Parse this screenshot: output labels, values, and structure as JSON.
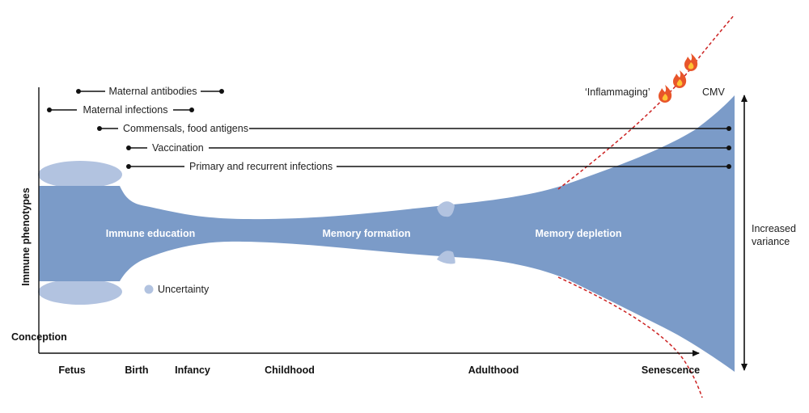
{
  "axis": {
    "y_title": "Immune phenotypes",
    "origin_label": "Conception"
  },
  "stages": [
    "Fetus",
    "Birth",
    "Infancy",
    "Childhood",
    "Adulthood",
    "Senescence"
  ],
  "phases": [
    "Immune education",
    "Memory formation",
    "Memory depletion"
  ],
  "exposures": [
    "Maternal antibodies",
    "Maternal infections",
    "Commensals, food antigens",
    "Vaccination",
    "Primary and recurrent infections"
  ],
  "legend": {
    "uncertainty": "Uncertainty"
  },
  "annotations": {
    "inflammaging": "‘Inflammaging’",
    "cmv": "CMV",
    "variance_line1": "Increased",
    "variance_line2": "variance"
  },
  "colors": {
    "immune_band": "#7b9bc8",
    "uncertainty": "#b2c3e0",
    "boundary_line": "#cc2222",
    "axis": "#111111"
  },
  "icons": [
    "flame-icon",
    "flame-icon",
    "flame-icon"
  ]
}
